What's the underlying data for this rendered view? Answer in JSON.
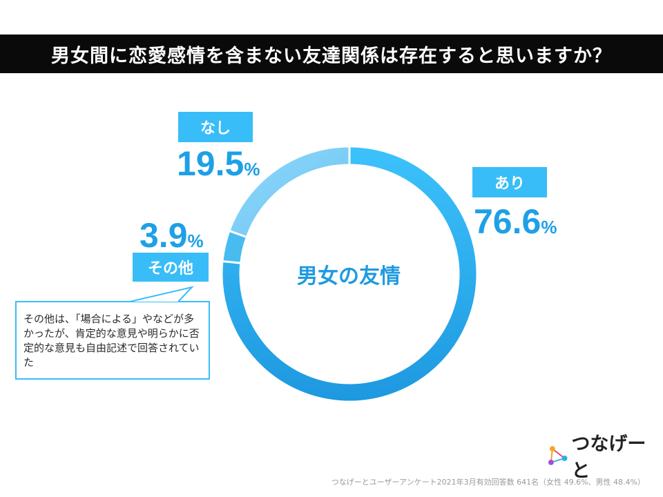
{
  "title": "男女間に恋愛感情を含まない友達関係は存在すると思いますか？",
  "colors": {
    "ari": "#2fb4f4",
    "nashi": "#7ccdf6",
    "sonota": "#48bcf0",
    "accent": "#38bdf8",
    "percent_text": "#1ea0e6"
  },
  "chart_data": {
    "type": "pie",
    "center_label": "男女の友情",
    "slices": [
      {
        "label": "あり",
        "value": 76.6,
        "display": "76.6",
        "unit": "%"
      },
      {
        "label": "その他",
        "value": 3.9,
        "display": "3.9",
        "unit": "%"
      },
      {
        "label": "なし",
        "value": 19.5,
        "display": "19.5",
        "unit": "%"
      }
    ]
  },
  "note": "その他は、「場合による」やなどが多かったが、肯定的な意見や明らかに否定的な意見も自由記述で回答されていた",
  "logo": {
    "text": "つなげーと",
    "icon": "network-nodes-icon"
  },
  "footnote": "つなげーとユーザーアンケート2021年3月有効回答数 641名（女性 49.6%、男性 48.4%）"
}
